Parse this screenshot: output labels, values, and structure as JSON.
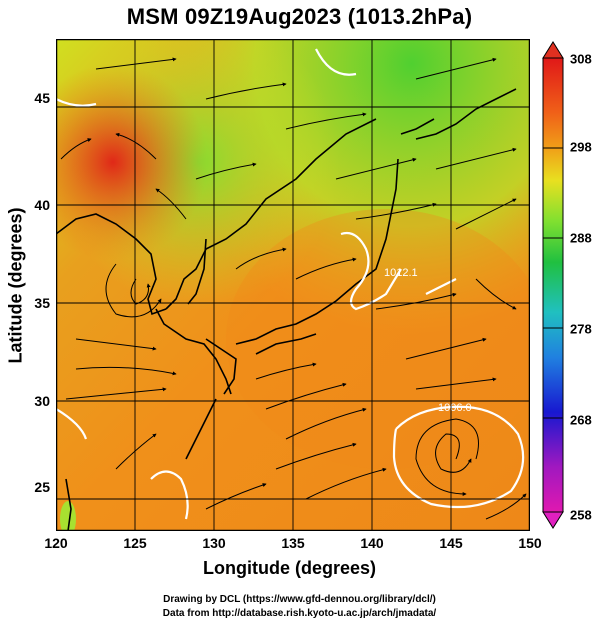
{
  "title": "MSM 09Z19Aug2023 (1013.2hPa)",
  "xaxis": {
    "label": "Longitude (degrees)",
    "ticks": [
      "120",
      "125",
      "130",
      "135",
      "140",
      "145",
      "150"
    ]
  },
  "yaxis": {
    "label": "Latitude  (degrees)",
    "ticks": [
      "25",
      "30",
      "35",
      "40",
      "45"
    ]
  },
  "colorbar": {
    "ticks": [
      "308",
      "298",
      "288",
      "278",
      "268",
      "258"
    ]
  },
  "contour_labels": [
    "1012.1",
    "1006.0"
  ],
  "credits": {
    "line1": "Drawing by DCL (https://www.gfd-dennou.org/library/dcl/)",
    "line2": "Data from http://database.rish.kyoto-u.ac.jp/arch/jmadata/"
  },
  "colors": {
    "warm": "#f08a1a",
    "hot": "#e8351a",
    "green": "#7ddc2a",
    "yellow": "#d8e830"
  }
}
